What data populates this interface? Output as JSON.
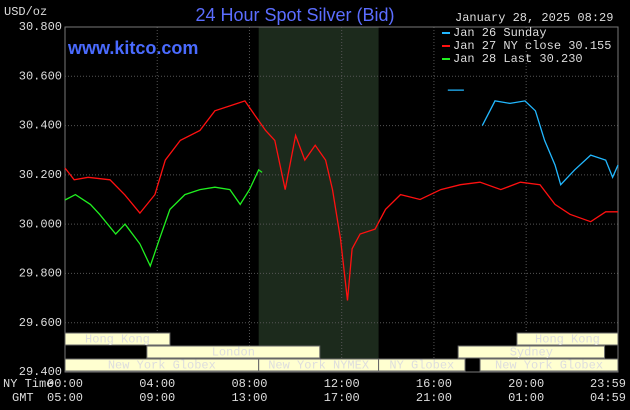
{
  "chart_data": {
    "type": "line",
    "title": "24 Hour Spot Silver (Bid)",
    "unit_label": "USD/oz",
    "timestamp": "January 28, 2025 08:29",
    "site": "www.kitco.com",
    "x_row_labels": [
      "NY Time",
      "GMT"
    ],
    "xlim": [
      0,
      23.983
    ],
    "xticks": [
      {
        "value": 0,
        "label": "00:00"
      },
      {
        "value": 4,
        "label": "04:00"
      },
      {
        "value": 8,
        "label": "08:00"
      },
      {
        "value": 12,
        "label": "12:00"
      },
      {
        "value": 16,
        "label": "16:00"
      },
      {
        "value": 20,
        "label": "20:00"
      },
      {
        "value": 23.983,
        "label": "23:59"
      }
    ],
    "xticks_gmt": [
      "05:00",
      "09:00",
      "13:00",
      "17:00",
      "21:00",
      "01:00",
      "04:59"
    ],
    "ylim": [
      29.4,
      30.8
    ],
    "yticks": [
      {
        "value": 29.4,
        "label": "29.400"
      },
      {
        "value": 29.6,
        "label": "29.600"
      },
      {
        "value": 29.8,
        "label": "29.800"
      },
      {
        "value": 30.0,
        "label": "30.000"
      },
      {
        "value": 30.2,
        "label": "30.200"
      },
      {
        "value": 30.4,
        "label": "30.400"
      },
      {
        "value": 30.6,
        "label": "30.600"
      },
      {
        "value": 30.8,
        "label": "30.800"
      }
    ],
    "grid": true,
    "sessions": [
      {
        "name": "Hong Kong",
        "start": 0,
        "end": 4.55,
        "row": 0
      },
      {
        "name": "London",
        "start": 3.55,
        "end": 11.05,
        "row": 1
      },
      {
        "name": "New York Globex",
        "start": 0,
        "end": 8.4,
        "row": 2
      },
      {
        "name": "New York NYMEX",
        "start": 8.4,
        "end": 13.6,
        "row": 2,
        "shaded": true
      },
      {
        "name": "NY Globex",
        "start": 13.6,
        "end": 17.35,
        "row": 2
      },
      {
        "name": "Hong Kong",
        "start": 19.6,
        "end": 23.983,
        "row": 0
      },
      {
        "name": "Sydney",
        "start": 17.05,
        "end": 23.4,
        "row": 1
      },
      {
        "name": "New York Globex",
        "start": 18,
        "end": 23.983,
        "row": 2
      }
    ],
    "series": [
      {
        "name": "Jan 26 Sunday",
        "color": "#22b8ff",
        "x": [
          16.6,
          17.3,
          17.7,
          18.1,
          18.65,
          19.3,
          19.95,
          20.4,
          20.8,
          21.25,
          21.5,
          22.1,
          22.8,
          23.45,
          23.75,
          23.983
        ],
        "values": [
          30.544,
          30.544,
          null,
          30.4,
          30.5,
          30.49,
          30.5,
          30.46,
          30.34,
          30.24,
          30.16,
          30.22,
          30.28,
          30.26,
          30.19,
          30.24
        ]
      },
      {
        "name": "Jan 27 NY close 30.155",
        "color": "#ff1010",
        "x": [
          0,
          0.4,
          1.0,
          1.95,
          2.6,
          3.25,
          3.9,
          4.35,
          5.0,
          5.85,
          6.5,
          7.15,
          7.8,
          8.25,
          8.7,
          9.1,
          9.55,
          10.0,
          10.4,
          10.85,
          11.3,
          11.6,
          11.95,
          12.25,
          12.45,
          12.8,
          13.45,
          13.9,
          14.55,
          15.4,
          16.3,
          17.15,
          18.0,
          18.9,
          19.75,
          20.6,
          21.25,
          21.9,
          22.8,
          23.45,
          23.983
        ],
        "values": [
          30.228,
          30.18,
          30.19,
          30.18,
          30.118,
          30.045,
          30.12,
          30.26,
          30.34,
          30.38,
          30.46,
          30.48,
          30.5,
          30.44,
          30.38,
          30.34,
          30.14,
          30.36,
          30.26,
          30.32,
          30.26,
          30.14,
          29.94,
          29.69,
          29.9,
          29.96,
          29.98,
          30.06,
          30.12,
          30.1,
          30.14,
          30.16,
          30.17,
          30.14,
          30.17,
          30.16,
          30.08,
          30.04,
          30.01,
          30.05,
          30.05
        ]
      },
      {
        "name": "Jan 28 Last 30.230",
        "color": "#20f020",
        "x": [
          0,
          0.45,
          1.1,
          1.5,
          2.2,
          2.6,
          3.25,
          3.7,
          4.1,
          4.55,
          5.2,
          5.85,
          6.5,
          7.15,
          7.6,
          8.0,
          8.4,
          8.55
        ],
        "values": [
          30.098,
          30.12,
          30.08,
          30.04,
          29.96,
          30.0,
          29.92,
          29.83,
          29.94,
          30.06,
          30.12,
          30.14,
          30.15,
          30.14,
          30.08,
          30.14,
          30.22,
          30.21
        ]
      }
    ]
  }
}
